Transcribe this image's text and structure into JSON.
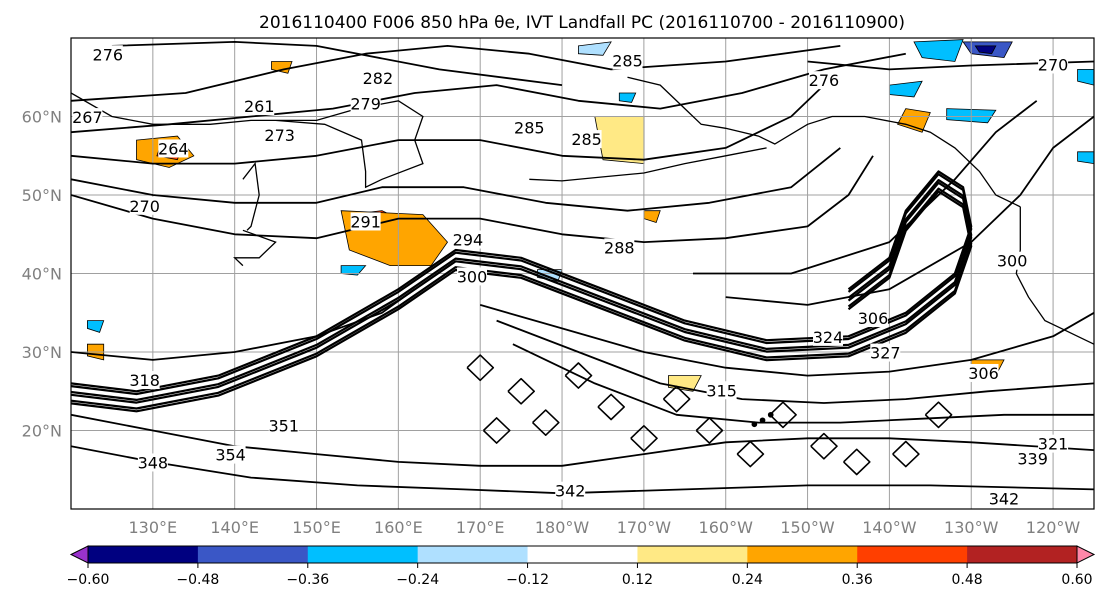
{
  "chart_data": {
    "type": "heatmap",
    "title": "2016110400 F006 850 hPa θe, IVT Landfall PC (2016110700 - 2016110900)",
    "map_extent": {
      "lon_min": 120,
      "lon_max": 245,
      "lat_min": 10,
      "lat_max": 70
    },
    "grid": true,
    "x_ticks": [
      {
        "lon": 130,
        "label": "130°E"
      },
      {
        "lon": 140,
        "label": "140°E"
      },
      {
        "lon": 150,
        "label": "150°E"
      },
      {
        "lon": 160,
        "label": "160°E"
      },
      {
        "lon": 170,
        "label": "170°E"
      },
      {
        "lon": 180,
        "label": "180°W"
      },
      {
        "lon": 190,
        "label": "170°W"
      },
      {
        "lon": 200,
        "label": "160°W"
      },
      {
        "lon": 210,
        "label": "150°W"
      },
      {
        "lon": 220,
        "label": "140°W"
      },
      {
        "lon": 230,
        "label": "130°W"
      },
      {
        "lon": 240,
        "label": "120°W"
      }
    ],
    "y_ticks": [
      {
        "lat": 20,
        "label": "20°N"
      },
      {
        "lat": 30,
        "label": "30°N"
      },
      {
        "lat": 40,
        "label": "40°N"
      },
      {
        "lat": 50,
        "label": "50°N"
      },
      {
        "lat": 60,
        "label": "60°N"
      }
    ],
    "colorbar": {
      "levels": [
        -0.72,
        -0.6,
        -0.48,
        -0.36,
        -0.24,
        -0.12,
        0.12,
        0.24,
        0.36,
        0.48,
        0.6,
        0.72
      ],
      "colors": [
        "#9932cc",
        "#000080",
        "#3a57c6",
        "#00bfff",
        "#afe0ff",
        "#ffffff",
        "#ffe985",
        "#ffa500",
        "#ff3f00",
        "#b22222",
        "#ff87a9"
      ],
      "tick_labels": [
        "−0.60",
        "−0.48",
        "−0.36",
        "−0.24",
        "−0.12",
        "0.12",
        "0.24",
        "0.36",
        "0.48",
        "0.60"
      ],
      "extend": "both"
    },
    "contour_labels": [
      {
        "text": "276",
        "lon": 124.5,
        "lat": 67.8
      },
      {
        "text": "276",
        "lon": 212,
        "lat": 64.5
      },
      {
        "text": "270",
        "lon": 240,
        "lat": 66.5
      },
      {
        "text": "285",
        "lon": 188,
        "lat": 67
      },
      {
        "text": "285",
        "lon": 176,
        "lat": 58.5
      },
      {
        "text": "285",
        "lon": 183,
        "lat": 57
      },
      {
        "text": "282",
        "lon": 157.5,
        "lat": 64.8
      },
      {
        "text": "279",
        "lon": 156,
        "lat": 61.5
      },
      {
        "text": "261",
        "lon": 143,
        "lat": 61.2
      },
      {
        "text": "267",
        "lon": 122,
        "lat": 59.8
      },
      {
        "text": "264",
        "lon": 132.5,
        "lat": 55.8
      },
      {
        "text": "273",
        "lon": 145.5,
        "lat": 57.5
      },
      {
        "text": "270",
        "lon": 129,
        "lat": 48.5
      },
      {
        "text": "291",
        "lon": 156,
        "lat": 46.5
      },
      {
        "text": "294",
        "lon": 168.5,
        "lat": 44.2
      },
      {
        "text": "288",
        "lon": 187,
        "lat": 43.2
      },
      {
        "text": "300",
        "lon": 169,
        "lat": 39.5
      },
      {
        "text": "300",
        "lon": 235,
        "lat": 41.5
      },
      {
        "text": "306",
        "lon": 218,
        "lat": 34.2
      },
      {
        "text": "324",
        "lon": 212.5,
        "lat": 31.8
      },
      {
        "text": "327",
        "lon": 219.5,
        "lat": 29.8
      },
      {
        "text": "318",
        "lon": 129,
        "lat": 26.3
      },
      {
        "text": "315",
        "lon": 199.5,
        "lat": 25
      },
      {
        "text": "351",
        "lon": 146,
        "lat": 20.5
      },
      {
        "text": "348",
        "lon": 130,
        "lat": 15.8
      },
      {
        "text": "354",
        "lon": 139.5,
        "lat": 16.8
      },
      {
        "text": "342",
        "lon": 181,
        "lat": 12.2
      },
      {
        "text": "342",
        "lon": 234,
        "lat": 11.2
      },
      {
        "text": "321",
        "lon": 240,
        "lat": 18.2
      },
      {
        "text": "339",
        "lon": 237.5,
        "lat": 16.3
      },
      {
        "text": "306",
        "lon": 231.5,
        "lat": 27.2
      }
    ]
  }
}
